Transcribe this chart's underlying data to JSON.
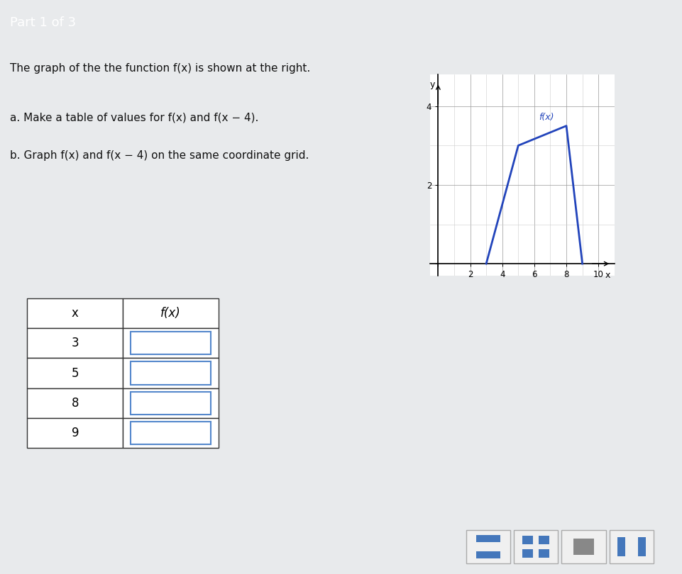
{
  "title_bar": "Part 1 of 3",
  "title_bar_color": "#3a8fc4",
  "bg_color": "#e8eaec",
  "main_bg": "#f5f5f5",
  "description": "The graph of the the function f(x) is shown at the right.",
  "part_a": "a. Make a table of values for f(x) and f(x − 4).",
  "part_b": "b. Graph f(x) and f(x − 4) on the same coordinate grid.",
  "graph": {
    "xlim": [
      -0.5,
      11
    ],
    "ylim": [
      -0.3,
      4.8
    ],
    "xticks": [
      0,
      2,
      4,
      6,
      8,
      10
    ],
    "yticks": [
      0,
      2,
      4
    ],
    "xlabel": "x",
    "ylabel": "y",
    "fx_label": "f(x)",
    "fx_points": [
      [
        3,
        0
      ],
      [
        5,
        3
      ],
      [
        8,
        3.5
      ],
      [
        9,
        0
      ]
    ],
    "line_color": "#2244bb",
    "line_width": 2.0
  },
  "table": {
    "x_values": [
      3,
      5,
      8,
      9
    ],
    "headers": [
      "x",
      "f(x)"
    ],
    "box_color": "#5588cc",
    "header_bg": "#ffffff",
    "cell_bg": "#ffffff",
    "border_color": "#333333"
  },
  "bottom_bar_color": "#d8d8d8",
  "font_color": "#111111",
  "separator_color": "#999999"
}
